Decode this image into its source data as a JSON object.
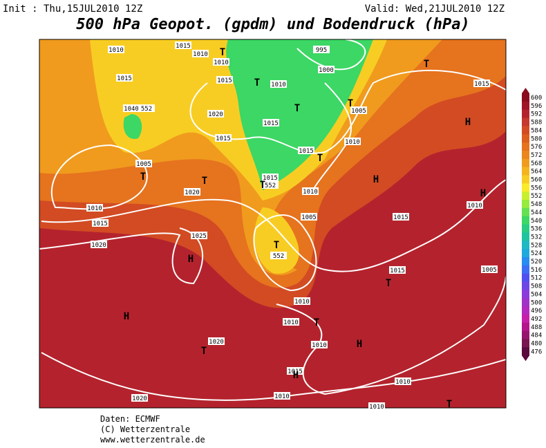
{
  "header": {
    "init": "Init : Thu,15JUL2010 12Z",
    "valid": "Valid: Wed,21JUL2010 12Z",
    "title": "500 hPa Geopot. (gpdm) und Bodendruck (hPa)"
  },
  "isobar_labels": [
    "1010",
    "1015",
    "1010",
    "1010",
    "995",
    "1000",
    "1015",
    "1015",
    "1010",
    "1040",
    "552",
    "1020",
    "1005",
    "1015",
    "1015",
    "1010",
    "1015",
    "1005",
    "1015",
    "552",
    "1020",
    "1010",
    "1010",
    "1010",
    "1015",
    "1005",
    "1015",
    "1025",
    "1020",
    "552",
    "1015",
    "1005",
    "1010",
    "1010",
    "1010",
    "1020",
    "1015",
    "1010",
    "1020",
    "1010",
    "1010",
    "1015"
  ],
  "pressure_centers": [
    "T",
    "T",
    "T",
    "T",
    "T",
    "T",
    "T",
    "H",
    "H",
    "T",
    "H",
    "T",
    "H",
    "T",
    "T",
    "H",
    "T",
    "T",
    "H",
    "H",
    "T"
  ],
  "colorbar": {
    "levels": [
      600,
      596,
      592,
      588,
      584,
      580,
      576,
      572,
      568,
      564,
      560,
      556,
      552,
      548,
      544,
      540,
      536,
      532,
      528,
      524,
      520,
      516,
      512,
      508,
      504,
      500,
      496,
      492,
      488,
      484,
      480,
      476
    ],
    "colors": [
      "#8b0a1e",
      "#a01428",
      "#b4232d",
      "#c8372d",
      "#d24b23",
      "#dc5f1e",
      "#e6731e",
      "#eb871e",
      "#f09b1e",
      "#f5b41e",
      "#f8cd23",
      "#faeb28",
      "#c8f02d",
      "#96eb3c",
      "#64e150",
      "#3cd764",
      "#28cd82",
      "#1ec3a0",
      "#1eb9c3",
      "#1eaadc",
      "#288cf0",
      "#3c6ef5",
      "#5050f0",
      "#6e46e6",
      "#8c3cdc",
      "#a032c8",
      "#b428be",
      "#c81eaa",
      "#b4148c",
      "#96146e",
      "#781450",
      "#5a0a3c"
    ]
  },
  "footer": [
    "Daten: ECMWF",
    "(C) Wetterzentrale",
    "www.wetterzentrale.de"
  ]
}
